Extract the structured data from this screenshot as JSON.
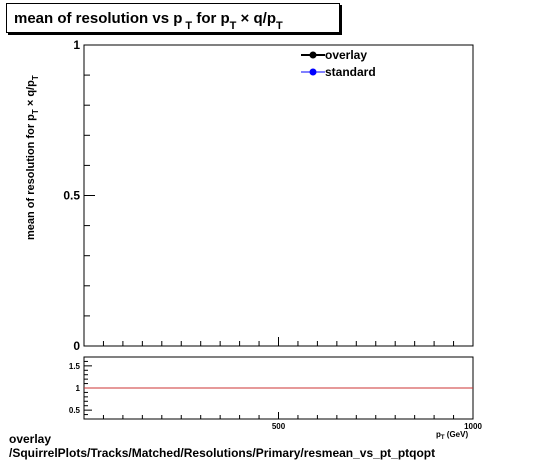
{
  "header": {
    "title": "mean of resolution vs p_{T} for p_{T} × q/p_{T}"
  },
  "footer": {
    "line1": "overlay",
    "line2": "/SquirrelPlots/Tracks/Matched/Resolutions/Primary/resmean_vs_pt_ptqopt"
  },
  "colors": {
    "frame": "#000000",
    "ratio_line": "#cc3333",
    "overlay": "#000000",
    "standard": "#0000ff"
  },
  "chart_data": [
    {
      "type": "line",
      "title": "mean of resolution vs p_{T} for p_{T} × q/p_{T}",
      "ylabel": "mean of resolution for p_{T} × q/p_{T}",
      "xlim": [
        0,
        1000
      ],
      "ylim": [
        0,
        1
      ],
      "yticks": [
        0,
        0.5,
        1
      ],
      "ytick_labels": [
        "0",
        "0.5",
        "1"
      ],
      "legend": {
        "placement": "top-right",
        "entries": [
          "overlay",
          "standard"
        ]
      },
      "series": [
        {
          "name": "overlay",
          "x": [],
          "y": []
        },
        {
          "name": "standard",
          "x": [],
          "y": []
        }
      ]
    },
    {
      "type": "line",
      "xlabel": "p_{T} (GeV)",
      "xlim": [
        0,
        1000
      ],
      "ylim": [
        0.3,
        1.7
      ],
      "xticks": [
        500,
        1000
      ],
      "xtick_labels": [
        "500",
        "1000"
      ],
      "yticks": [
        0.5,
        1,
        1.5
      ],
      "ytick_labels": [
        "0.5",
        "1",
        "1.5"
      ],
      "reference_line": 1
    }
  ]
}
